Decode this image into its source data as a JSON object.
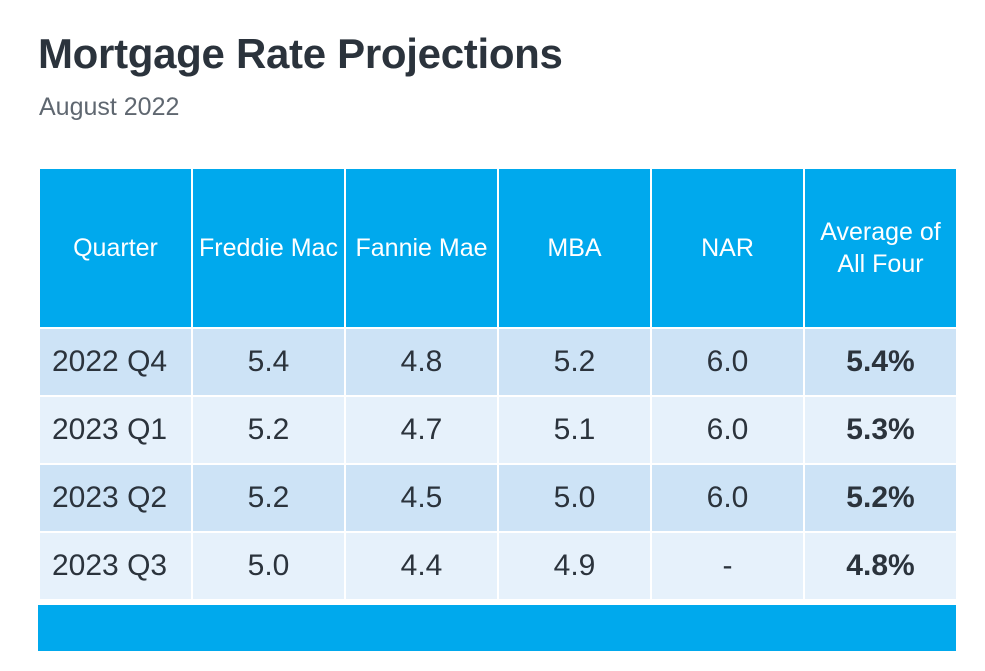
{
  "title": "Mortgage Rate Projections",
  "subtitle": "August 2022",
  "colors": {
    "header_bg": "#00a9ed",
    "row_dark": "#cde3f6",
    "row_light": "#e6f1fb",
    "text": "#2b333c"
  },
  "chart_data": {
    "type": "table",
    "columns": [
      "Quarter",
      "Freddie Mac",
      "Fannie Mae",
      "MBA",
      "NAR",
      "Average of All Four"
    ],
    "rows": [
      {
        "quarter": "2022 Q4",
        "freddie_mac": "5.4",
        "fannie_mae": "4.8",
        "mba": "5.2",
        "nar": "6.0",
        "average": "5.4%"
      },
      {
        "quarter": "2023 Q1",
        "freddie_mac": "5.2",
        "fannie_mae": "4.7",
        "mba": "5.1",
        "nar": "6.0",
        "average": "5.3%"
      },
      {
        "quarter": "2023 Q2",
        "freddie_mac": "5.2",
        "fannie_mae": "4.5",
        "mba": "5.0",
        "nar": "6.0",
        "average": "5.2%"
      },
      {
        "quarter": "2023 Q3",
        "freddie_mac": "5.0",
        "fannie_mae": "4.4",
        "mba": "4.9",
        "nar": "-",
        "average": "4.8%"
      }
    ]
  }
}
